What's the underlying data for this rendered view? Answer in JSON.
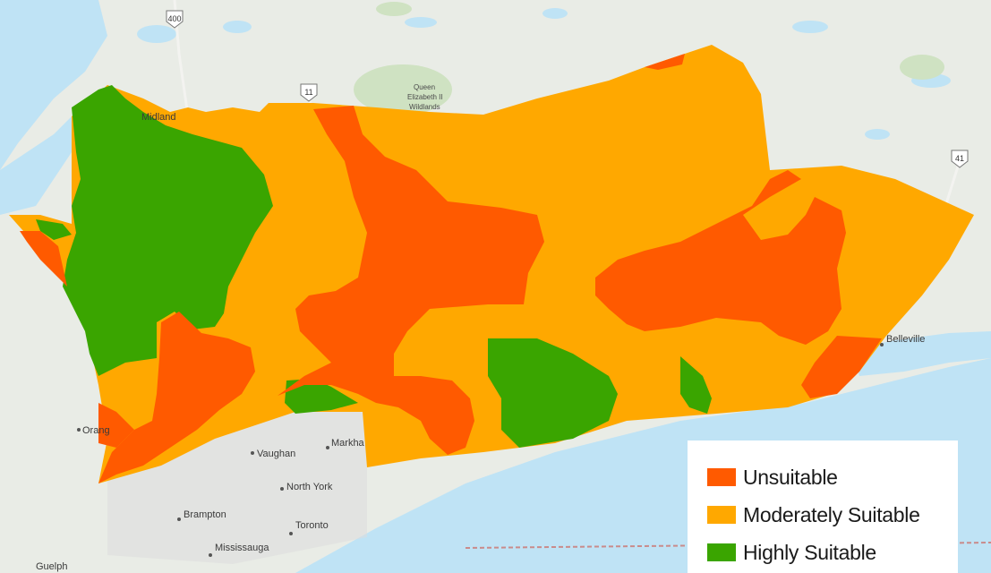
{
  "map": {
    "places": {
      "midland": "Midland",
      "queen": "Queen",
      "elizabeth": "Elizabeth II",
      "wildlands": "Wildlands",
      "belleville": "Belleville",
      "orangeville": "Orang",
      "vaughan": "Vaughan",
      "markham": "Markha",
      "north_york": "North York",
      "brampton": "Brampton",
      "toronto": "Toronto",
      "mississauga": "Mississauga",
      "guelph": "Guelph"
    },
    "highways": {
      "hwy400": "400",
      "hwy11": "11",
      "hwy41": "41"
    }
  },
  "legend": {
    "items": [
      {
        "label": "Unsuitable",
        "color": "#ff5a00"
      },
      {
        "label": "Moderately Suitable",
        "color": "#ffa800"
      },
      {
        "label": "Highly Suitable",
        "color": "#3aa500"
      }
    ]
  },
  "colors": {
    "unsuitable": "#ff5a00",
    "moderate": "#ffa800",
    "high": "#3aa500",
    "water": "#bfe3f5",
    "land": "#e9ece6",
    "park": "#cfe2c2"
  }
}
